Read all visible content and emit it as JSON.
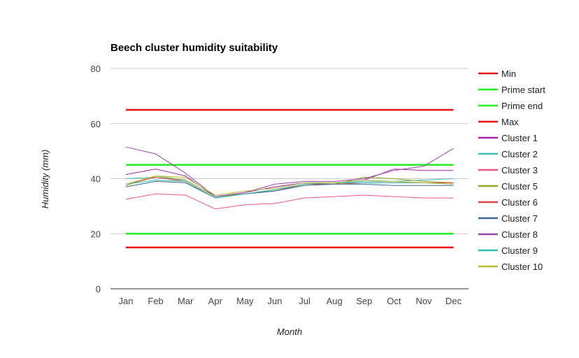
{
  "chart_data": {
    "type": "line",
    "title": "Beech cluster humidity suitability",
    "xlabel": "Month",
    "ylabel": "Humidity (mm)",
    "ylim": [
      0,
      80
    ],
    "yticks": [
      0,
      20,
      40,
      60,
      80
    ],
    "grid": true,
    "legend": "right",
    "categories": [
      "Jan",
      "Feb",
      "Mar",
      "Apr",
      "May",
      "Jun",
      "Jul",
      "Aug",
      "Sep",
      "Oct",
      "Nov",
      "Dec"
    ],
    "series": [
      {
        "name": "Min",
        "color": "#ee1111",
        "width": 2.5,
        "values": [
          15,
          15,
          15,
          15,
          15,
          15,
          15,
          15,
          15,
          15,
          15,
          15
        ]
      },
      {
        "name": "Prime start",
        "color": "#22ee22",
        "width": 2.5,
        "values": [
          20,
          20,
          20,
          20,
          20,
          20,
          20,
          20,
          20,
          20,
          20,
          20
        ]
      },
      {
        "name": "Prime end",
        "color": "#22ee22",
        "width": 2.5,
        "values": [
          45,
          45,
          45,
          45,
          45,
          45,
          45,
          45,
          45,
          45,
          45,
          45
        ]
      },
      {
        "name": "Max",
        "color": "#ee1111",
        "width": 2.5,
        "values": [
          65,
          65,
          65,
          65,
          65,
          65,
          65,
          65,
          65,
          65,
          65,
          65
        ]
      },
      {
        "name": "Cluster 1",
        "color": "#aa22aa",
        "width": 1,
        "values": [
          41.5,
          43.5,
          41,
          33.5,
          35,
          37,
          38.5,
          38.5,
          39.5,
          43.5,
          43,
          43
        ]
      },
      {
        "name": "Cluster 2",
        "color": "#44bbbb",
        "width": 1,
        "values": [
          40,
          40.5,
          39.5,
          33.5,
          34.5,
          36,
          38,
          38.5,
          39,
          39,
          39.5,
          40
        ]
      },
      {
        "name": "Cluster 3",
        "color": "#ee5588",
        "width": 1,
        "values": [
          32.5,
          34.5,
          34,
          29,
          30.5,
          31,
          33,
          33.5,
          34,
          33.5,
          33,
          33
        ]
      },
      {
        "name": "Cluster 5",
        "color": "#88aa22",
        "width": 1,
        "values": [
          37.5,
          41,
          39.5,
          33.5,
          34.5,
          36,
          38,
          38,
          40.5,
          40,
          39,
          38.5
        ]
      },
      {
        "name": "Cluster 6",
        "color": "#dd4444",
        "width": 1,
        "values": [
          38,
          40.5,
          39,
          33,
          34.5,
          35.5,
          38,
          38,
          38.5,
          38.5,
          38.5,
          38.5
        ]
      },
      {
        "name": "Cluster 7",
        "color": "#336699",
        "width": 1,
        "values": [
          37,
          39,
          38.5,
          33,
          34.5,
          35.5,
          37.5,
          38,
          38,
          37.5,
          37.5,
          37.5
        ]
      },
      {
        "name": "Cluster 8",
        "color": "#9944aa",
        "width": 1,
        "values": [
          51.5,
          49,
          42,
          33.5,
          35,
          38,
          39,
          39,
          40,
          43,
          44.5,
          51
        ]
      },
      {
        "name": "Cluster 9",
        "color": "#33bbaa",
        "width": 1,
        "values": [
          38,
          39.5,
          39,
          33,
          34.5,
          36,
          38,
          38.5,
          38.5,
          38.5,
          38.5,
          38
        ]
      },
      {
        "name": "Cluster 10",
        "color": "#bbbb33",
        "width": 1,
        "values": [
          38,
          41,
          40.5,
          34,
          35.5,
          36.5,
          38.5,
          38.5,
          39.5,
          39,
          38.5,
          38
        ]
      }
    ]
  }
}
